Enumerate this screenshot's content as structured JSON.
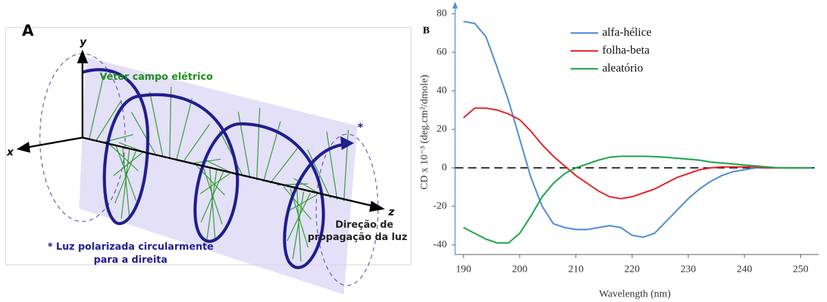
{
  "panel_a": {
    "label": "A",
    "y_axis": "y",
    "x_axis": "x",
    "z_axis": "z",
    "field_label": "Vetor campo elétrico",
    "marker": "*",
    "direction_label": [
      "Direção de",
      "propagação da luz"
    ],
    "note": [
      "* Luz polarizada circularmente",
      "para a direita"
    ]
  },
  "chart_data": {
    "type": "line",
    "panel_label": "B",
    "x_label": "Wavelength (nm)",
    "y_label": "CD x 10⁻³ (deg.cm²/dmole)",
    "x": [
      190,
      192,
      194,
      196,
      198,
      200,
      202,
      204,
      206,
      208,
      210,
      212,
      214,
      216,
      218,
      220,
      222,
      224,
      226,
      228,
      230,
      232,
      234,
      236,
      238,
      240,
      242,
      244,
      246,
      248,
      250,
      252
    ],
    "series": [
      {
        "name": "alfa-hélice",
        "color": "#4f8fd6",
        "values": [
          76,
          75,
          68,
          52,
          35,
          15,
          -5,
          -20,
          -29,
          -31,
          -32,
          -32,
          -31,
          -30,
          -31,
          -35,
          -36,
          -34,
          -28,
          -22,
          -16,
          -11,
          -7,
          -4,
          -2,
          -1,
          0,
          0,
          0,
          0,
          0,
          0
        ]
      },
      {
        "name": "folha-beta",
        "color": "#e8262a",
        "values": [
          26,
          31,
          31,
          30,
          28,
          25,
          19,
          12,
          6,
          1,
          -4,
          -8,
          -12,
          -15,
          -16,
          -15,
          -13,
          -11,
          -8,
          -5,
          -3,
          -1,
          0,
          0.5,
          0.5,
          0.5,
          0.5,
          0,
          0,
          0,
          0,
          0
        ]
      },
      {
        "name": "aleatório",
        "color": "#1ea64a",
        "values": [
          -31,
          -34,
          -37,
          -39,
          -39,
          -34,
          -25,
          -15,
          -8,
          -3,
          0,
          2,
          4,
          5.5,
          6,
          6,
          6,
          5.8,
          5.5,
          5,
          4.5,
          4,
          3,
          2.5,
          2,
          1.5,
          1,
          0.5,
          0,
          0,
          0,
          0
        ]
      }
    ],
    "xlim": [
      188.5,
      252.5
    ],
    "xticks": [
      190,
      200,
      210,
      220,
      230,
      240,
      250
    ],
    "ylim": [
      -45,
      82
    ],
    "yticks": [
      80,
      60,
      40,
      20,
      0,
      -20,
      -40
    ],
    "zero_line": true
  }
}
